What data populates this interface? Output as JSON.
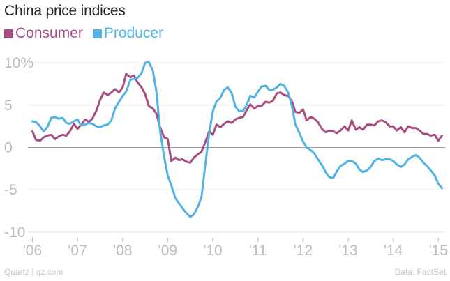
{
  "title": "China price indices",
  "footer": {
    "source_left": "Quartz | qz.com",
    "source_right": "Data: FactSet"
  },
  "colors": {
    "consumer": "#a74d7f",
    "producer": "#51b2e5",
    "zero_line": "#9a9a9a",
    "grid": "#e6e6e6",
    "tick": "#bdbdbd"
  },
  "chart_data": {
    "type": "line",
    "title": "China price indices",
    "xlabel": "",
    "ylabel": "",
    "xlim": [
      2005.9,
      2015.15
    ],
    "ylim": [
      -11,
      11
    ],
    "grid": true,
    "legend_position": "top-left",
    "x_ticks": [
      {
        "value": 2006,
        "label": "'06"
      },
      {
        "value": 2007,
        "label": "'07"
      },
      {
        "value": 2008,
        "label": "'08"
      },
      {
        "value": 2009,
        "label": "'09"
      },
      {
        "value": 2010,
        "label": "'10"
      },
      {
        "value": 2011,
        "label": "'11"
      },
      {
        "value": 2012,
        "label": "'12"
      },
      {
        "value": 2013,
        "label": "'13"
      },
      {
        "value": 2014,
        "label": "'14"
      },
      {
        "value": 2015,
        "label": "'15"
      }
    ],
    "y_ticks": [
      {
        "value": 10,
        "label": "10%"
      },
      {
        "value": 5,
        "label": "5"
      },
      {
        "value": 0,
        "label": "0"
      },
      {
        "value": -5,
        "label": "-5"
      },
      {
        "value": -10,
        "label": "-10"
      }
    ],
    "series": [
      {
        "name": "Consumer",
        "color": "#a74d7f",
        "points": [
          [
            2006.0,
            1.9
          ],
          [
            2006.08,
            0.9
          ],
          [
            2006.17,
            0.8
          ],
          [
            2006.25,
            1.2
          ],
          [
            2006.33,
            1.4
          ],
          [
            2006.42,
            1.5
          ],
          [
            2006.5,
            1.0
          ],
          [
            2006.58,
            1.3
          ],
          [
            2006.67,
            1.5
          ],
          [
            2006.75,
            1.4
          ],
          [
            2006.83,
            1.9
          ],
          [
            2006.92,
            2.8
          ],
          [
            2007.0,
            2.2
          ],
          [
            2007.08,
            2.7
          ],
          [
            2007.17,
            3.3
          ],
          [
            2007.25,
            3.0
          ],
          [
            2007.33,
            3.4
          ],
          [
            2007.42,
            4.4
          ],
          [
            2007.5,
            5.6
          ],
          [
            2007.58,
            6.5
          ],
          [
            2007.67,
            6.2
          ],
          [
            2007.75,
            6.5
          ],
          [
            2007.83,
            6.9
          ],
          [
            2007.92,
            6.5
          ],
          [
            2008.0,
            7.1
          ],
          [
            2008.08,
            8.7
          ],
          [
            2008.17,
            8.3
          ],
          [
            2008.25,
            8.5
          ],
          [
            2008.33,
            7.7
          ],
          [
            2008.42,
            7.1
          ],
          [
            2008.5,
            6.3
          ],
          [
            2008.58,
            4.9
          ],
          [
            2008.67,
            4.6
          ],
          [
            2008.75,
            4.0
          ],
          [
            2008.83,
            2.4
          ],
          [
            2008.92,
            1.2
          ],
          [
            2009.0,
            1.0
          ],
          [
            2009.08,
            -1.6
          ],
          [
            2009.17,
            -1.2
          ],
          [
            2009.25,
            -1.5
          ],
          [
            2009.33,
            -1.4
          ],
          [
            2009.42,
            -1.7
          ],
          [
            2009.5,
            -1.8
          ],
          [
            2009.58,
            -1.2
          ],
          [
            2009.67,
            -0.8
          ],
          [
            2009.75,
            -0.5
          ],
          [
            2009.83,
            0.6
          ],
          [
            2009.92,
            1.9
          ],
          [
            2010.0,
            1.5
          ],
          [
            2010.08,
            2.7
          ],
          [
            2010.17,
            2.4
          ],
          [
            2010.25,
            2.8
          ],
          [
            2010.33,
            3.1
          ],
          [
            2010.42,
            2.9
          ],
          [
            2010.5,
            3.3
          ],
          [
            2010.58,
            3.5
          ],
          [
            2010.67,
            3.6
          ],
          [
            2010.75,
            4.4
          ],
          [
            2010.83,
            5.1
          ],
          [
            2010.92,
            4.6
          ],
          [
            2011.0,
            4.9
          ],
          [
            2011.08,
            4.9
          ],
          [
            2011.17,
            5.4
          ],
          [
            2011.25,
            5.3
          ],
          [
            2011.33,
            5.5
          ],
          [
            2011.42,
            6.4
          ],
          [
            2011.5,
            6.5
          ],
          [
            2011.58,
            6.2
          ],
          [
            2011.67,
            6.1
          ],
          [
            2011.75,
            5.5
          ],
          [
            2011.83,
            4.2
          ],
          [
            2011.92,
            4.1
          ],
          [
            2012.0,
            4.5
          ],
          [
            2012.08,
            3.2
          ],
          [
            2012.17,
            3.6
          ],
          [
            2012.25,
            3.4
          ],
          [
            2012.33,
            3.0
          ],
          [
            2012.42,
            2.2
          ],
          [
            2012.5,
            1.8
          ],
          [
            2012.58,
            2.0
          ],
          [
            2012.67,
            1.9
          ],
          [
            2012.75,
            1.7
          ],
          [
            2012.83,
            2.0
          ],
          [
            2012.92,
            2.5
          ],
          [
            2013.0,
            2.0
          ],
          [
            2013.08,
            3.2
          ],
          [
            2013.17,
            2.1
          ],
          [
            2013.25,
            2.4
          ],
          [
            2013.33,
            2.1
          ],
          [
            2013.42,
            2.7
          ],
          [
            2013.5,
            2.7
          ],
          [
            2013.58,
            2.6
          ],
          [
            2013.67,
            3.1
          ],
          [
            2013.75,
            3.2
          ],
          [
            2013.83,
            3.0
          ],
          [
            2013.92,
            2.5
          ],
          [
            2014.0,
            2.5
          ],
          [
            2014.08,
            2.0
          ],
          [
            2014.17,
            2.4
          ],
          [
            2014.25,
            1.8
          ],
          [
            2014.33,
            2.5
          ],
          [
            2014.42,
            2.3
          ],
          [
            2014.5,
            2.3
          ],
          [
            2014.58,
            2.0
          ],
          [
            2014.67,
            1.6
          ],
          [
            2014.75,
            1.6
          ],
          [
            2014.83,
            1.4
          ],
          [
            2014.92,
            1.5
          ],
          [
            2015.0,
            0.8
          ],
          [
            2015.08,
            1.4
          ]
        ]
      },
      {
        "name": "Producer",
        "color": "#51b2e5",
        "points": [
          [
            2006.0,
            3.1
          ],
          [
            2006.08,
            3.0
          ],
          [
            2006.17,
            2.5
          ],
          [
            2006.25,
            1.9
          ],
          [
            2006.33,
            2.4
          ],
          [
            2006.42,
            3.5
          ],
          [
            2006.5,
            3.6
          ],
          [
            2006.58,
            3.4
          ],
          [
            2006.67,
            3.5
          ],
          [
            2006.75,
            2.9
          ],
          [
            2006.83,
            2.8
          ],
          [
            2006.92,
            3.1
          ],
          [
            2007.0,
            3.3
          ],
          [
            2007.08,
            2.6
          ],
          [
            2007.17,
            2.7
          ],
          [
            2007.25,
            2.9
          ],
          [
            2007.33,
            2.8
          ],
          [
            2007.42,
            2.5
          ],
          [
            2007.5,
            2.4
          ],
          [
            2007.58,
            2.6
          ],
          [
            2007.67,
            2.7
          ],
          [
            2007.75,
            3.2
          ],
          [
            2007.83,
            4.6
          ],
          [
            2007.92,
            5.4
          ],
          [
            2008.0,
            6.1
          ],
          [
            2008.08,
            6.6
          ],
          [
            2008.17,
            8.0
          ],
          [
            2008.25,
            8.1
          ],
          [
            2008.33,
            8.2
          ],
          [
            2008.42,
            8.8
          ],
          [
            2008.5,
            10.0
          ],
          [
            2008.58,
            10.1
          ],
          [
            2008.67,
            9.1
          ],
          [
            2008.75,
            6.6
          ],
          [
            2008.83,
            2.0
          ],
          [
            2008.92,
            -1.1
          ],
          [
            2009.0,
            -3.3
          ],
          [
            2009.08,
            -4.5
          ],
          [
            2009.17,
            -6.0
          ],
          [
            2009.25,
            -6.6
          ],
          [
            2009.33,
            -7.2
          ],
          [
            2009.42,
            -7.8
          ],
          [
            2009.5,
            -8.2
          ],
          [
            2009.58,
            -7.9
          ],
          [
            2009.67,
            -7.0
          ],
          [
            2009.75,
            -5.8
          ],
          [
            2009.83,
            -2.1
          ],
          [
            2009.92,
            1.7
          ],
          [
            2010.0,
            4.3
          ],
          [
            2010.08,
            5.4
          ],
          [
            2010.17,
            5.9
          ],
          [
            2010.25,
            6.8
          ],
          [
            2010.33,
            7.1
          ],
          [
            2010.42,
            6.4
          ],
          [
            2010.5,
            4.8
          ],
          [
            2010.58,
            4.3
          ],
          [
            2010.67,
            4.3
          ],
          [
            2010.75,
            5.0
          ],
          [
            2010.83,
            6.1
          ],
          [
            2010.92,
            5.9
          ],
          [
            2011.0,
            6.6
          ],
          [
            2011.08,
            7.2
          ],
          [
            2011.17,
            7.3
          ],
          [
            2011.25,
            6.8
          ],
          [
            2011.33,
            6.8
          ],
          [
            2011.42,
            7.1
          ],
          [
            2011.5,
            7.5
          ],
          [
            2011.58,
            7.3
          ],
          [
            2011.67,
            6.5
          ],
          [
            2011.75,
            5.0
          ],
          [
            2011.83,
            2.7
          ],
          [
            2011.92,
            1.7
          ],
          [
            2012.0,
            0.7
          ],
          [
            2012.08,
            0.0
          ],
          [
            2012.17,
            -0.3
          ],
          [
            2012.25,
            -0.7
          ],
          [
            2012.33,
            -1.4
          ],
          [
            2012.42,
            -2.1
          ],
          [
            2012.5,
            -2.9
          ],
          [
            2012.58,
            -3.5
          ],
          [
            2012.67,
            -3.6
          ],
          [
            2012.75,
            -2.8
          ],
          [
            2012.83,
            -2.2
          ],
          [
            2012.92,
            -1.9
          ],
          [
            2013.0,
            -1.6
          ],
          [
            2013.08,
            -1.6
          ],
          [
            2013.17,
            -1.9
          ],
          [
            2013.25,
            -2.6
          ],
          [
            2013.33,
            -2.9
          ],
          [
            2013.42,
            -2.7
          ],
          [
            2013.5,
            -2.3
          ],
          [
            2013.58,
            -1.6
          ],
          [
            2013.67,
            -1.3
          ],
          [
            2013.75,
            -1.5
          ],
          [
            2013.83,
            -1.4
          ],
          [
            2013.92,
            -1.4
          ],
          [
            2014.0,
            -1.6
          ],
          [
            2014.08,
            -2.0
          ],
          [
            2014.17,
            -2.3
          ],
          [
            2014.25,
            -2.0
          ],
          [
            2014.33,
            -1.4
          ],
          [
            2014.42,
            -1.1
          ],
          [
            2014.5,
            -0.9
          ],
          [
            2014.58,
            -1.2
          ],
          [
            2014.67,
            -1.8
          ],
          [
            2014.75,
            -2.2
          ],
          [
            2014.83,
            -2.7
          ],
          [
            2014.92,
            -3.3
          ],
          [
            2015.0,
            -4.3
          ],
          [
            2015.08,
            -4.8
          ]
        ]
      }
    ]
  }
}
